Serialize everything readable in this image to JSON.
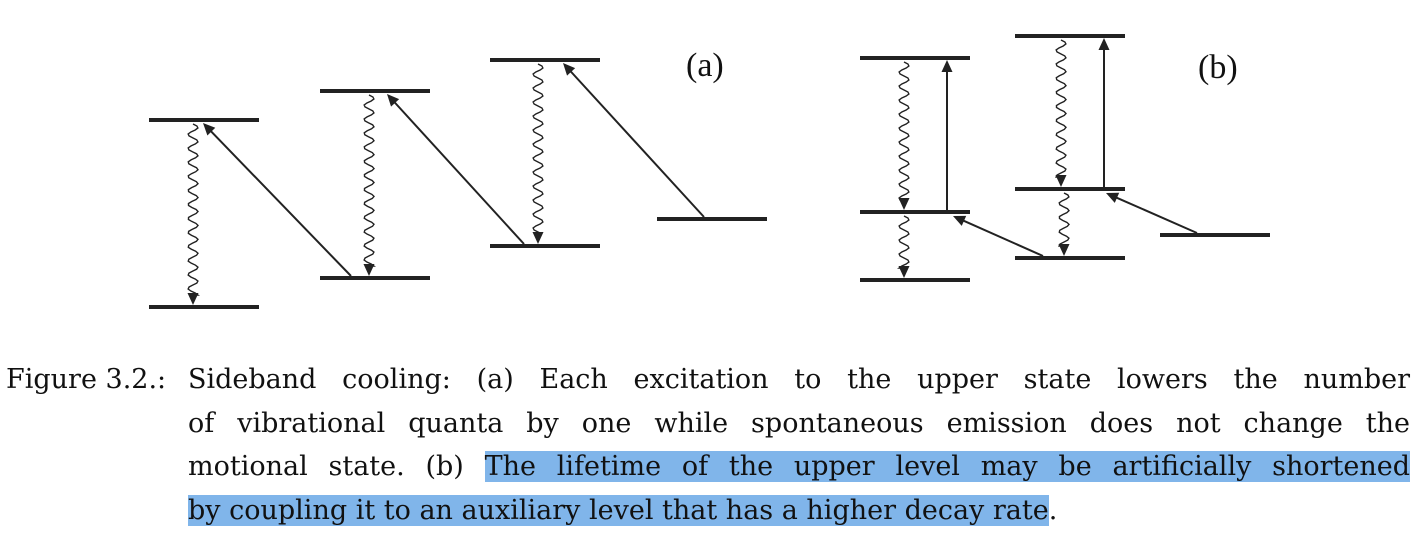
{
  "figure": {
    "panel_a_label": "(a)",
    "panel_b_label": "(b)"
  },
  "caption": {
    "label": "Figure 3.2.:",
    "line1": "Sideband cooling:  (a) Each excitation to the upper state lowers the number",
    "line2": "of vibrational quanta by one while spontaneous emission does not change the",
    "line3_plain": "motional state.  (b) ",
    "line3_highlight": "The lifetime of the upper level may be artificially shortened",
    "line4_highlight": "by coupling it to an auxiliary level that has a higher decay rate",
    "line4_plain": ".",
    "highlight_color": "#80b5ea"
  }
}
